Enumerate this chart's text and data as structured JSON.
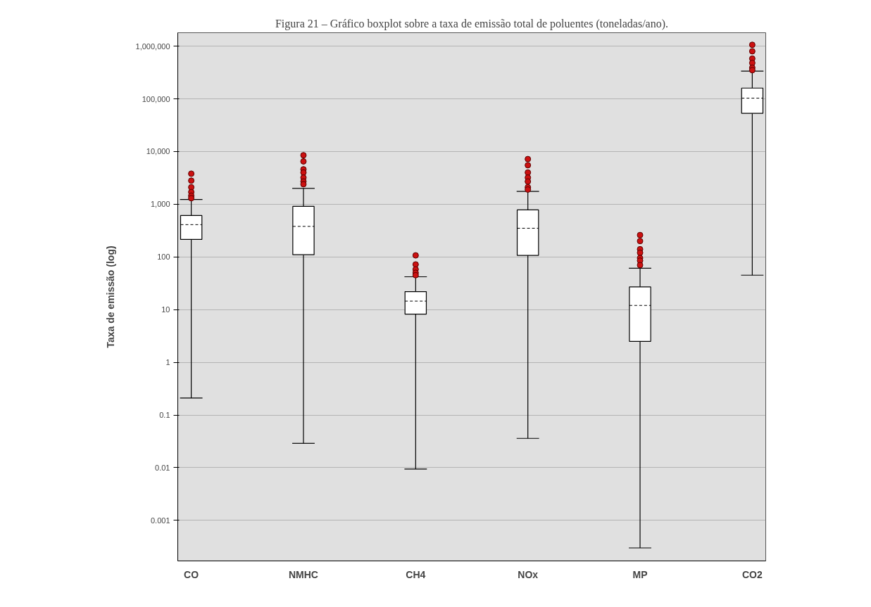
{
  "chart_data": {
    "type": "box",
    "title": "Figura 21 – Gráfico boxplot sobre a taxa de emissão total de poluentes (toneladas/ano).",
    "ylabel": "Taxa de emissão (log)",
    "categories": [
      "CO",
      "NMHC",
      "CH4",
      "NOx",
      "MP",
      "CO2"
    ],
    "boxes": [
      {
        "low": 0.21,
        "q1": 215,
        "median": 410,
        "q3": 610,
        "high": 1230,
        "outliers": [
          3800,
          2800,
          2100,
          1700,
          1450,
          1300
        ]
      },
      {
        "low": 0.029,
        "q1": 110,
        "median": 380,
        "q3": 910,
        "high": 2000,
        "outliers": [
          8500,
          6500,
          4600,
          4000,
          3200,
          2700,
          2400
        ]
      },
      {
        "low": 0.0094,
        "q1": 8.2,
        "median": 14.5,
        "q3": 22,
        "high": 42,
        "outliers": [
          107,
          72,
          58,
          50,
          45
        ]
      },
      {
        "low": 0.036,
        "q1": 107,
        "median": 350,
        "q3": 780,
        "high": 1750,
        "outliers": [
          7200,
          5500,
          4000,
          3200,
          2700,
          2100,
          1900
        ]
      },
      {
        "low": 0.0003,
        "q1": 2.5,
        "median": 12,
        "q3": 27,
        "high": 61,
        "outliers": [
          260,
          200,
          140,
          120,
          95,
          85,
          70
        ]
      },
      {
        "low": 45,
        "q1": 53000,
        "median": 103000,
        "q3": 160000,
        "high": 335000,
        "outliers": [
          1060000,
          800000,
          580000,
          480000,
          390000,
          350000
        ]
      }
    ],
    "log": "y",
    "ylim": [
      0.00017,
      1800000
    ],
    "yticks": [
      0.001,
      0.01,
      0.1,
      1,
      10,
      100,
      {
        "value": 1000,
        "label": "1,000"
      },
      {
        "value": 10000,
        "label": "10,000"
      },
      {
        "value": 100000,
        "label": "100,000"
      },
      {
        "value": 1000000,
        "label": "1,000,000"
      }
    ],
    "grid": "y"
  }
}
